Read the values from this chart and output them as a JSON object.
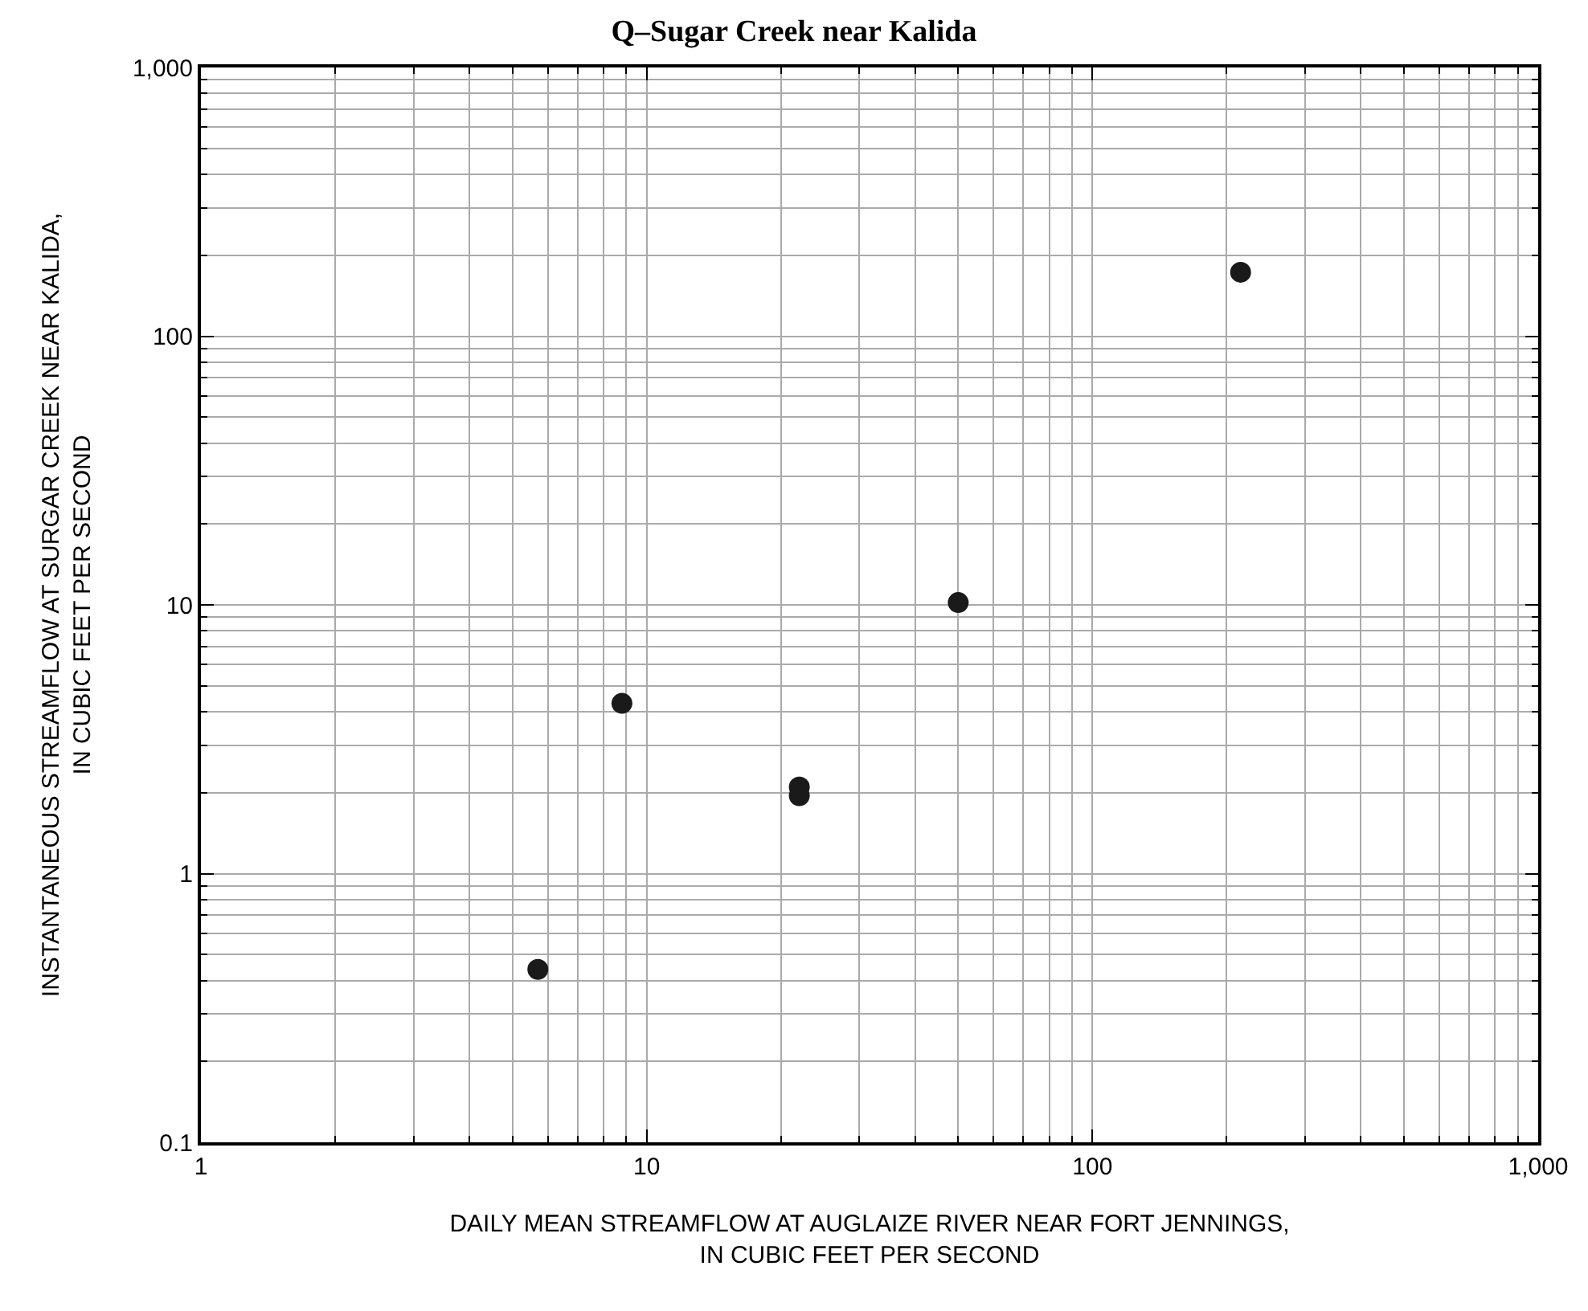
{
  "chart_data": {
    "type": "scatter",
    "title": "Q–Sugar Creek near Kalida",
    "xlabel": "DAILY MEAN STREAMFLOW AT AUGLAIZE RIVER NEAR FORT JENNINGS,\nIN CUBIC FEET PER SECOND",
    "ylabel": "INSTANTANEOUS STREAMFLOW AT SURGAR CREEK NEAR KALIDA,\nIN CUBIC FEET PER SECOND",
    "series": [
      {
        "color": "#1a1a1a",
        "x": [
          5.7,
          8.8,
          22,
          22,
          50,
          215
        ],
        "values": [
          0.44,
          4.3,
          2.1,
          1.95,
          10.2,
          173
        ]
      }
    ],
    "log": "xy",
    "xlim": [
      1,
      1000
    ],
    "ylim": [
      0.1,
      1000
    ],
    "xticks": [
      1,
      10,
      100,
      {
        "value": 1000,
        "label": "1,000"
      }
    ],
    "yticks": [
      0.1,
      1,
      10,
      100,
      {
        "value": 1000,
        "label": "1,000"
      }
    ],
    "grid": true,
    "marker": "circle"
  }
}
